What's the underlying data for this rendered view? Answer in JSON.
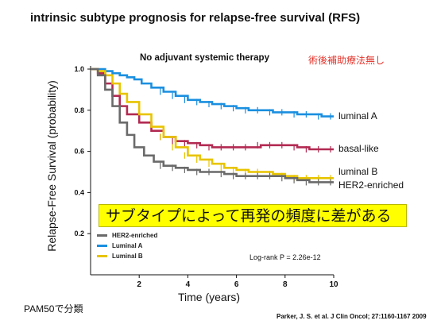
{
  "slide": {
    "title": "intrinsic subtype prognosis for relapse-free survival (RFS)",
    "jp_note": "術後補助療法無し",
    "banner": "サブタイプによって再発の頻度に差がある",
    "bottom_left": "PAM50で分類",
    "citation": "Parker, J. S. et al. J Clin Oncol; 27:1160-1167 2009"
  },
  "chart_data": {
    "type": "line",
    "title": "No adjuvant systemic therapy",
    "xlabel": "Time (years)",
    "ylabel": "Relapse-Free Survival (probability)",
    "xlim": [
      0,
      10
    ],
    "ylim": [
      0,
      1.0
    ],
    "xticks": [
      2,
      4,
      6,
      8,
      10
    ],
    "yticks": [
      0.2,
      0.4,
      0.6,
      0.8,
      1.0
    ],
    "annotation": "Log-rank P = 2.26e-12",
    "legend_placement": "bottom-left",
    "series": [
      {
        "name": "luminal A",
        "legend": "Luminal A",
        "color": "#1a8fe0",
        "x": [
          0,
          0.3,
          0.6,
          0.9,
          1.2,
          1.5,
          1.8,
          2.1,
          2.5,
          3,
          3.5,
          4,
          4.5,
          5,
          5.5,
          6,
          6.5,
          7,
          7.5,
          8,
          8.5,
          9,
          9.5,
          10
        ],
        "y": [
          1.0,
          1.0,
          0.99,
          0.98,
          0.97,
          0.96,
          0.95,
          0.93,
          0.91,
          0.89,
          0.87,
          0.85,
          0.84,
          0.83,
          0.82,
          0.81,
          0.8,
          0.8,
          0.79,
          0.79,
          0.78,
          0.78,
          0.77,
          0.77
        ]
      },
      {
        "name": "basal-like",
        "legend": null,
        "color": "#b22a52",
        "x": [
          0,
          0.3,
          0.6,
          0.9,
          1.2,
          1.5,
          2,
          2.5,
          3,
          3.5,
          4,
          4.5,
          5,
          5.5,
          6,
          6.5,
          7,
          7.5,
          8,
          8.5,
          9,
          9.5,
          10
        ],
        "y": [
          1.0,
          0.98,
          0.93,
          0.87,
          0.82,
          0.78,
          0.74,
          0.7,
          0.67,
          0.65,
          0.64,
          0.63,
          0.62,
          0.62,
          0.62,
          0.62,
          0.63,
          0.63,
          0.63,
          0.62,
          0.61,
          0.61,
          0.61
        ]
      },
      {
        "name": "luminal B",
        "legend": "Luminal B",
        "color": "#e8c400",
        "x": [
          0,
          0.3,
          0.6,
          0.9,
          1.2,
          1.5,
          2,
          2.5,
          3,
          3.5,
          4,
          4.5,
          5,
          5.5,
          6,
          6.5,
          7,
          7.5,
          8,
          8.5,
          9,
          9.5,
          10
        ],
        "y": [
          1.0,
          0.99,
          0.97,
          0.93,
          0.88,
          0.84,
          0.78,
          0.72,
          0.67,
          0.62,
          0.58,
          0.56,
          0.54,
          0.52,
          0.51,
          0.5,
          0.5,
          0.49,
          0.48,
          0.47,
          0.47,
          0.47,
          0.47
        ]
      },
      {
        "name": "HER2-enriched",
        "legend": "HER2-enriched",
        "color": "#6a6a6a",
        "x": [
          0,
          0.3,
          0.6,
          0.9,
          1.2,
          1.5,
          1.8,
          2.2,
          2.6,
          3,
          3.5,
          4,
          4.5,
          5,
          5.5,
          6,
          6.5,
          7,
          7.5,
          8,
          8.5,
          9,
          9.5,
          10
        ],
        "y": [
          1.0,
          0.97,
          0.9,
          0.82,
          0.74,
          0.68,
          0.62,
          0.58,
          0.55,
          0.53,
          0.52,
          0.51,
          0.5,
          0.5,
          0.49,
          0.48,
          0.48,
          0.48,
          0.48,
          0.47,
          0.46,
          0.45,
          0.45,
          0.45
        ]
      }
    ],
    "series_labels": [
      "luminal A",
      "basal-like",
      "luminal B",
      "HER2-enriched"
    ],
    "legend_entries": [
      "HER2-enriched",
      "Luminal A",
      "Luminal B"
    ]
  }
}
